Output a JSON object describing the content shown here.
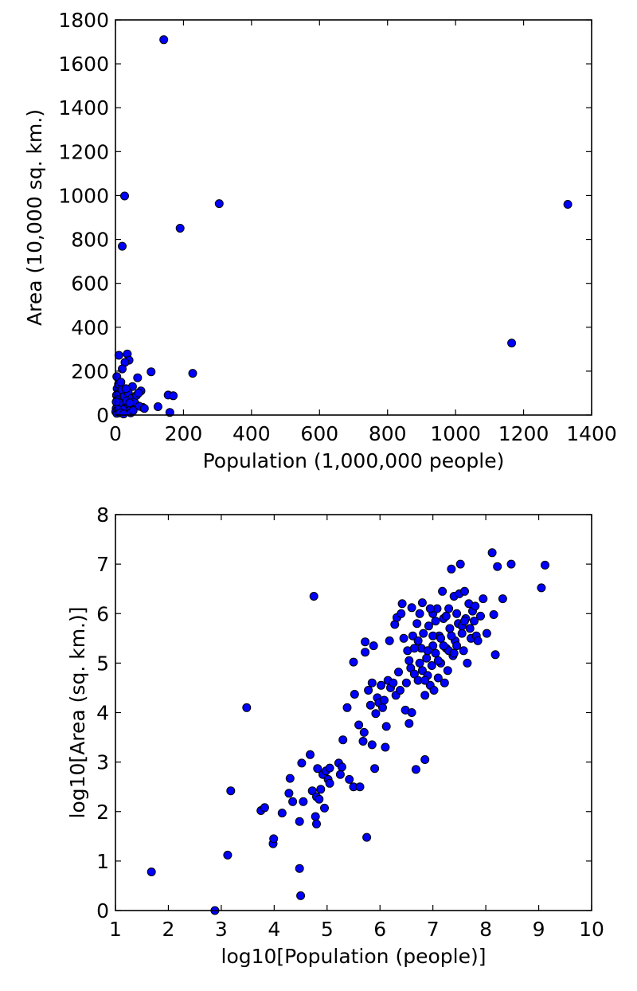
{
  "colors": {
    "marker_fill": "#0000ff",
    "marker_edge": "#000000",
    "background": "#ffffff"
  },
  "chart_data": [
    {
      "type": "scatter",
      "xlabel": "Population (1,000,000 people)",
      "ylabel": "Area (10,000 sq. km.)",
      "xlim": [
        0,
        1400
      ],
      "ylim": [
        0,
        1800
      ],
      "xticks": [
        0,
        200,
        400,
        600,
        800,
        1000,
        1200,
        1400
      ],
      "yticks": [
        0,
        200,
        400,
        600,
        800,
        1000,
        1200,
        1400,
        1600,
        1800
      ],
      "grid": false,
      "series": [
        {
          "points": [
            [
              142,
              1710
            ],
            [
              27,
              998
            ],
            [
              305,
              963
            ],
            [
              1330,
              960
            ],
            [
              190,
              851
            ],
            [
              20,
              769
            ],
            [
              1165,
              328
            ],
            [
              10,
              272
            ],
            [
              35,
              278
            ],
            [
              40,
              250
            ],
            [
              28,
              240
            ],
            [
              20,
              210
            ],
            [
              227,
              190
            ],
            [
              105,
              197
            ],
            [
              65,
              170
            ],
            [
              4,
              175
            ],
            [
              155,
              91
            ],
            [
              170,
              88
            ],
            [
              125,
              38
            ],
            [
              160,
              12
            ],
            [
              80,
              35
            ],
            [
              60,
              48
            ],
            [
              75,
              110
            ],
            [
              50,
              130
            ],
            [
              5,
              120
            ],
            [
              12,
              100
            ],
            [
              18,
              80
            ],
            [
              25,
              60
            ],
            [
              30,
              45
            ],
            [
              35,
              30
            ],
            [
              40,
              20
            ],
            [
              45,
              10
            ],
            [
              8,
              50
            ],
            [
              14,
              35
            ],
            [
              22,
              25
            ],
            [
              3,
              90
            ],
            [
              6,
              70
            ],
            [
              9,
              140
            ],
            [
              16,
              150
            ],
            [
              2,
              30
            ],
            [
              1,
              15
            ],
            [
              4,
              8
            ],
            [
              11,
              55
            ],
            [
              19,
              115
            ],
            [
              26,
              85
            ],
            [
              33,
              65
            ],
            [
              38,
              100
            ],
            [
              48,
              75
            ],
            [
              55,
              60
            ],
            [
              62,
              90
            ],
            [
              70,
              40
            ],
            [
              85,
              30
            ],
            [
              2,
              60
            ],
            [
              7,
              25
            ],
            [
              13,
              10
            ],
            [
              24,
              5
            ],
            [
              31,
              120
            ],
            [
              42,
              55
            ],
            [
              52,
              20
            ],
            [
              68,
              100
            ]
          ]
        }
      ]
    },
    {
      "type": "scatter",
      "xlabel": "log10[Population (people)]",
      "ylabel": "log10[Area (sq. km.)]",
      "xlim": [
        1,
        10
      ],
      "ylim": [
        0,
        8
      ],
      "xticks": [
        1,
        2,
        3,
        4,
        5,
        6,
        7,
        8,
        9,
        10
      ],
      "yticks": [
        0,
        1,
        2,
        3,
        4,
        5,
        6,
        7,
        8
      ],
      "grid": false,
      "series": [
        {
          "points": [
            [
              1.68,
              0.78
            ],
            [
              2.88,
              0.0
            ],
            [
              3.12,
              1.12
            ],
            [
              3.18,
              2.42
            ],
            [
              3.48,
              4.1
            ],
            [
              3.75,
              2.02
            ],
            [
              3.82,
              2.08
            ],
            [
              3.98,
              1.35
            ],
            [
              3.99,
              1.45
            ],
            [
              4.15,
              1.97
            ],
            [
              4.28,
              2.37
            ],
            [
              4.3,
              2.67
            ],
            [
              4.35,
              2.2
            ],
            [
              4.5,
              0.3
            ],
            [
              4.48,
              0.85
            ],
            [
              4.48,
              1.8
            ],
            [
              4.52,
              2.98
            ],
            [
              4.55,
              2.2
            ],
            [
              4.68,
              3.15
            ],
            [
              4.72,
              2.42
            ],
            [
              4.75,
              6.35
            ],
            [
              4.78,
              1.9
            ],
            [
              4.8,
              1.75
            ],
            [
              4.8,
              2.3
            ],
            [
              4.82,
              2.87
            ],
            [
              4.85,
              2.25
            ],
            [
              4.88,
              2.45
            ],
            [
              4.92,
              2.75
            ],
            [
              4.95,
              2.07
            ],
            [
              4.98,
              2.82
            ],
            [
              5.02,
              2.65
            ],
            [
              5.05,
              2.88
            ],
            [
              5.05,
              2.57
            ],
            [
              5.22,
              2.98
            ],
            [
              5.25,
              2.75
            ],
            [
              5.28,
              2.9
            ],
            [
              5.3,
              3.45
            ],
            [
              5.38,
              4.1
            ],
            [
              5.42,
              2.65
            ],
            [
              5.5,
              2.5
            ],
            [
              5.5,
              5.02
            ],
            [
              5.52,
              4.37
            ],
            [
              5.6,
              3.75
            ],
            [
              5.62,
              2.5
            ],
            [
              5.68,
              3.42
            ],
            [
              5.7,
              3.6
            ],
            [
              5.72,
              5.43
            ],
            [
              5.72,
              5.22
            ],
            [
              5.75,
              1.48
            ],
            [
              5.78,
              4.45
            ],
            [
              5.82,
              4.15
            ],
            [
              5.85,
              3.35
            ],
            [
              5.85,
              4.6
            ],
            [
              5.88,
              5.35
            ],
            [
              5.9,
              2.87
            ],
            [
              5.92,
              3.98
            ],
            [
              5.95,
              4.3
            ],
            [
              5.98,
              4.2
            ],
            [
              6.02,
              4.55
            ],
            [
              6.05,
              4.1
            ],
            [
              6.08,
              4.25
            ],
            [
              6.1,
              3.3
            ],
            [
              6.12,
              3.72
            ],
            [
              6.15,
              4.65
            ],
            [
              6.18,
              5.45
            ],
            [
              6.2,
              4.5
            ],
            [
              6.25,
              4.6
            ],
            [
              6.28,
              5.78
            ],
            [
              6.3,
              4.35
            ],
            [
              6.32,
              5.92
            ],
            [
              6.35,
              4.82
            ],
            [
              6.38,
              4.45
            ],
            [
              6.4,
              6.0
            ],
            [
              6.42,
              6.2
            ],
            [
              6.45,
              5.5
            ],
            [
              6.48,
              4.05
            ],
            [
              6.5,
              4.6
            ],
            [
              6.52,
              5.25
            ],
            [
              6.55,
              5.05
            ],
            [
              6.55,
              3.78
            ],
            [
              6.58,
              4.9
            ],
            [
              6.6,
              6.12
            ],
            [
              6.6,
              4.0
            ],
            [
              6.62,
              5.55
            ],
            [
              6.65,
              4.78
            ],
            [
              6.68,
              2.85
            ],
            [
              6.7,
              5.8
            ],
            [
              6.72,
              4.65
            ],
            [
              6.72,
              5.45
            ],
            [
              6.75,
              5.0
            ],
            [
              6.78,
              5.3
            ],
            [
              6.8,
              4.85
            ],
            [
              6.8,
              6.22
            ],
            [
              6.82,
              5.6
            ],
            [
              6.85,
              4.35
            ],
            [
              6.85,
              3.05
            ],
            [
              6.88,
              5.1
            ],
            [
              6.9,
              4.75
            ],
            [
              6.92,
              5.75
            ],
            [
              6.95,
              4.55
            ],
            [
              6.98,
              4.95
            ],
            [
              7.0,
              6.0
            ],
            [
              7.0,
              5.35
            ],
            [
              7.02,
              4.45
            ],
            [
              7.05,
              5.2
            ],
            [
              7.08,
              6.1
            ],
            [
              7.1,
              4.7
            ],
            [
              7.12,
              5.55
            ],
            [
              7.15,
              5.0
            ],
            [
              7.18,
              6.45
            ],
            [
              7.2,
              5.9
            ],
            [
              7.22,
              4.6
            ],
            [
              7.25,
              5.3
            ],
            [
              7.28,
              4.85
            ],
            [
              7.3,
              6.1
            ],
            [
              7.32,
              5.7
            ],
            [
              7.35,
              6.9
            ],
            [
              7.38,
              5.15
            ],
            [
              7.4,
              6.35
            ],
            [
              7.42,
              5.45
            ],
            [
              7.45,
              6.0
            ],
            [
              7.48,
              5.8
            ],
            [
              7.5,
              6.4
            ],
            [
              7.52,
              7.0
            ],
            [
              7.55,
              5.6
            ],
            [
              7.58,
              5.25
            ],
            [
              7.6,
              6.45
            ],
            [
              7.62,
              5.9
            ],
            [
              7.65,
              5.0
            ],
            [
              7.68,
              6.2
            ],
            [
              7.7,
              5.7
            ],
            [
              7.72,
              5.5
            ],
            [
              7.75,
              6.05
            ],
            [
              7.78,
              5.85
            ],
            [
              7.8,
              6.15
            ],
            [
              7.82,
              5.55
            ],
            [
              7.85,
              5.45
            ],
            [
              7.9,
              5.95
            ],
            [
              7.95,
              6.3
            ],
            [
              8.02,
              5.6
            ],
            [
              8.12,
              7.23
            ],
            [
              8.15,
              5.98
            ],
            [
              8.18,
              5.17
            ],
            [
              8.22,
              6.95
            ],
            [
              8.32,
              6.3
            ],
            [
              8.48,
              7.0
            ],
            [
              9.05,
              6.52
            ],
            [
              9.12,
              6.98
            ],
            [
              7.3,
              5.25
            ],
            [
              7.05,
              5.85
            ],
            [
              6.95,
              6.1
            ],
            [
              7.15,
              5.5
            ],
            [
              7.25,
              5.95
            ],
            [
              7.45,
              5.35
            ],
            [
              7.55,
              5.75
            ],
            [
              6.75,
              6.0
            ],
            [
              6.65,
              5.3
            ],
            [
              6.85,
              4.65
            ],
            [
              7.0,
              5.55
            ],
            [
              7.35,
              5.55
            ],
            [
              7.6,
              5.85
            ],
            [
              7.1,
              5.05
            ],
            [
              6.9,
              5.25
            ],
            [
              7.2,
              5.35
            ],
            [
              7.4,
              5.2
            ]
          ]
        }
      ]
    }
  ]
}
